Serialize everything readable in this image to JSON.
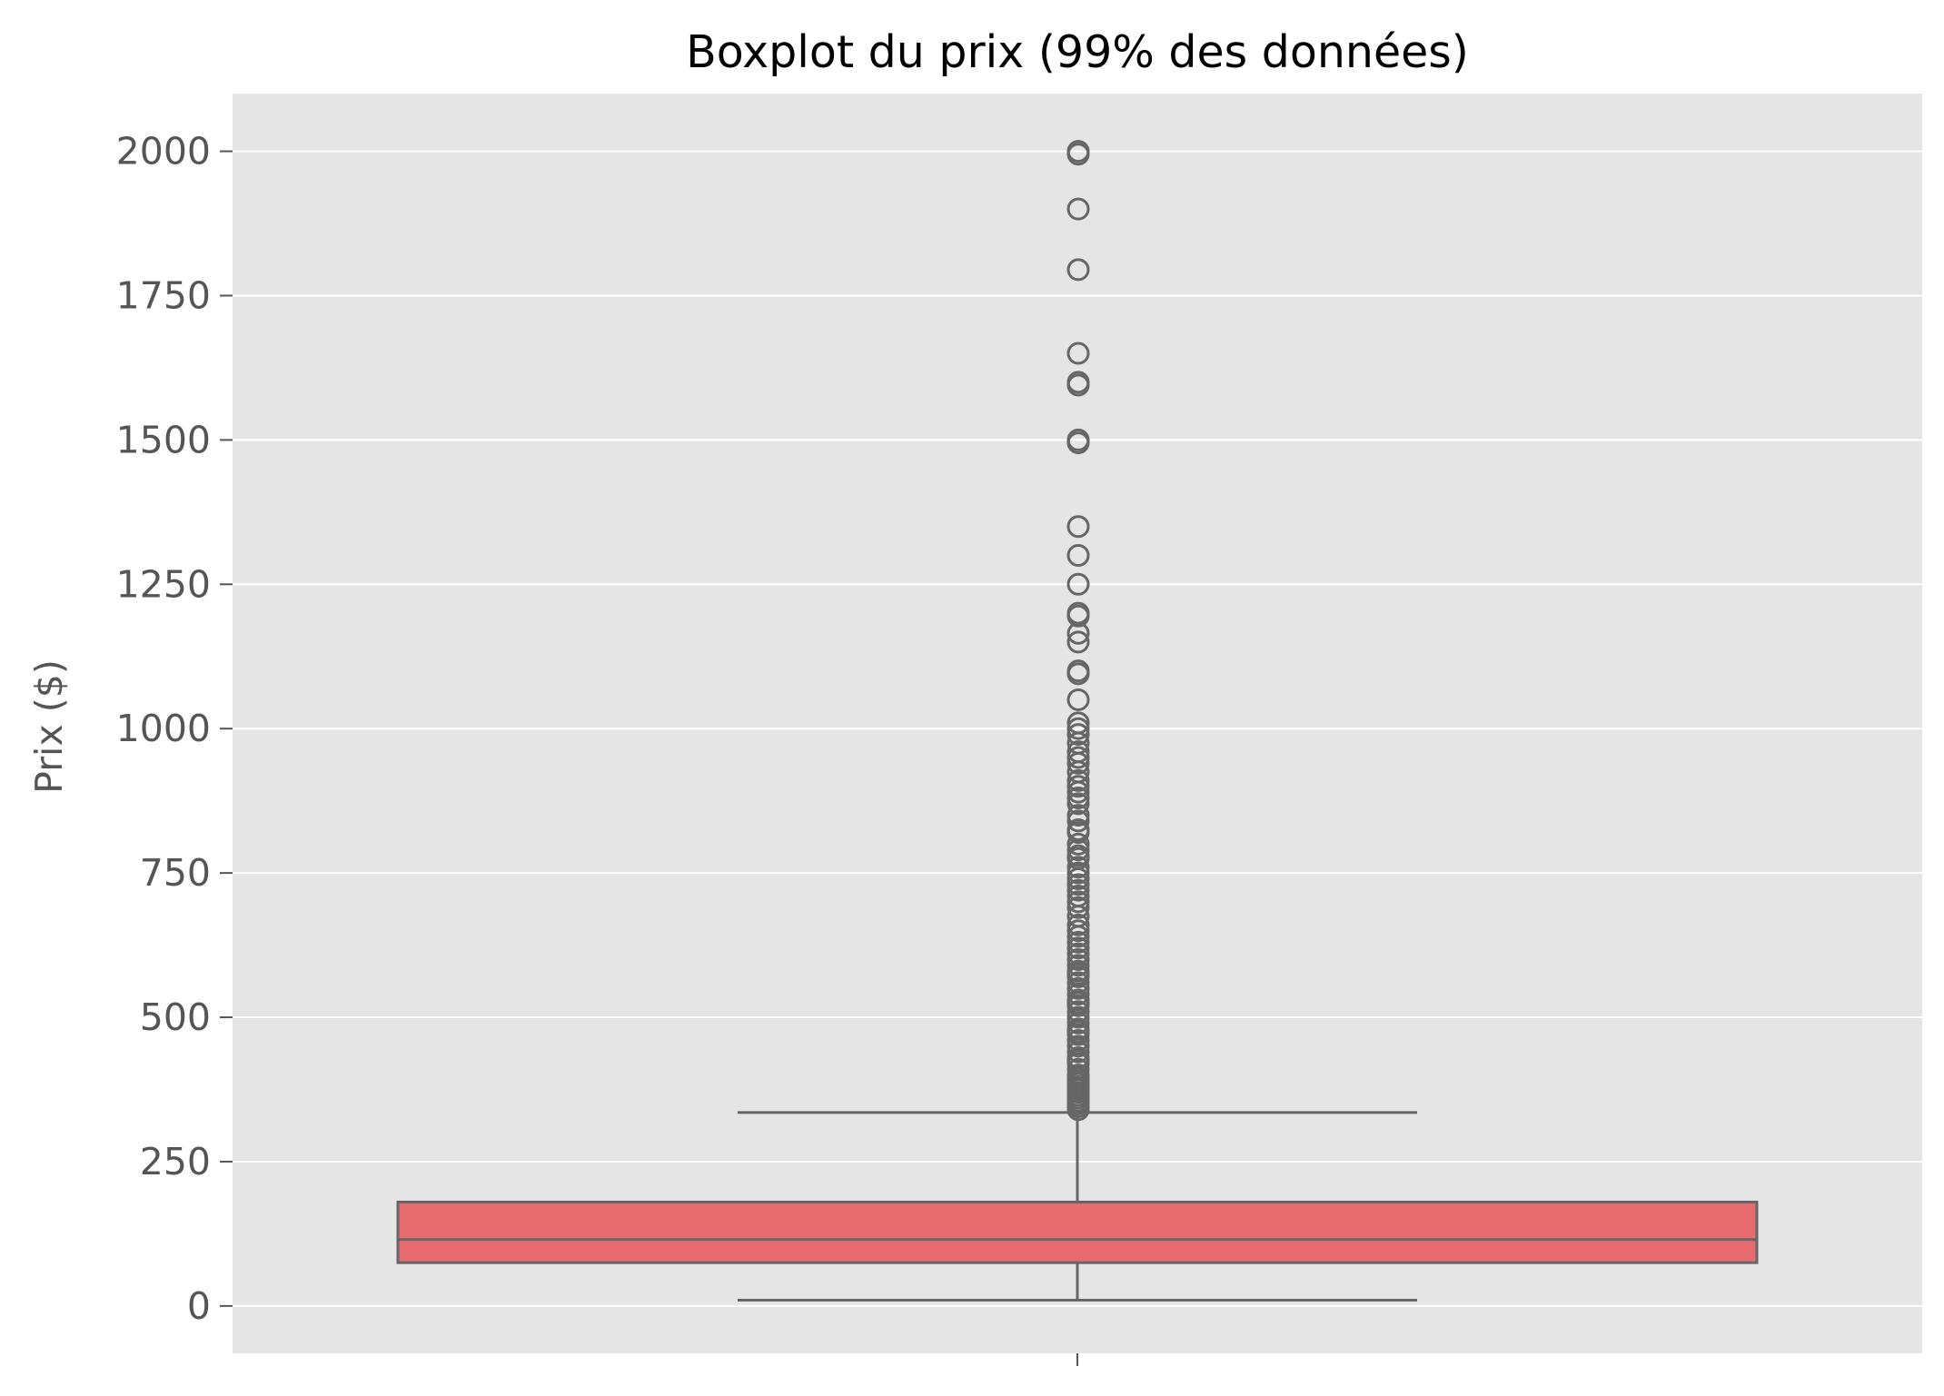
{
  "chart_data": {
    "type": "box",
    "title": "Boxplot du prix (99% des données)",
    "xlabel": "",
    "ylabel": "Prix ($)",
    "ylim": [
      -82,
      2100
    ],
    "y_ticks": [
      0,
      250,
      500,
      750,
      1000,
      1250,
      1500,
      1750,
      2000
    ],
    "y_tick_labels": [
      "0",
      "250",
      "500",
      "750",
      "1000",
      "1250",
      "1500",
      "1750",
      "2000"
    ],
    "grid": true,
    "legend": "none",
    "box": {
      "whisker_low": 10,
      "q1": 75,
      "median": 115,
      "q3": 180,
      "whisker_high": 335
    },
    "outliers": [
      340,
      345,
      350,
      355,
      360,
      365,
      370,
      375,
      380,
      385,
      390,
      395,
      400,
      410,
      420,
      425,
      430,
      440,
      450,
      460,
      470,
      475,
      480,
      490,
      500,
      510,
      520,
      525,
      530,
      540,
      550,
      560,
      570,
      575,
      580,
      590,
      600,
      610,
      620,
      630,
      640,
      650,
      660,
      675,
      690,
      700,
      710,
      720,
      730,
      740,
      750,
      760,
      775,
      780,
      790,
      800,
      820,
      825,
      840,
      850,
      870,
      880,
      890,
      900,
      910,
      925,
      940,
      950,
      960,
      975,
      990,
      1000,
      1010,
      1050,
      1095,
      1100,
      1150,
      1165,
      1195,
      1200,
      1250,
      1300,
      1350,
      1495,
      1500,
      1595,
      1600,
      1650,
      1795,
      1900,
      1995,
      2000
    ],
    "colors": {
      "plot_background": "#e5e5e5",
      "grid": "#ffffff",
      "box_fill": "#e86b70",
      "box_edge": "#666666",
      "outlier_edge": "#666666",
      "tick": "#555555"
    }
  }
}
